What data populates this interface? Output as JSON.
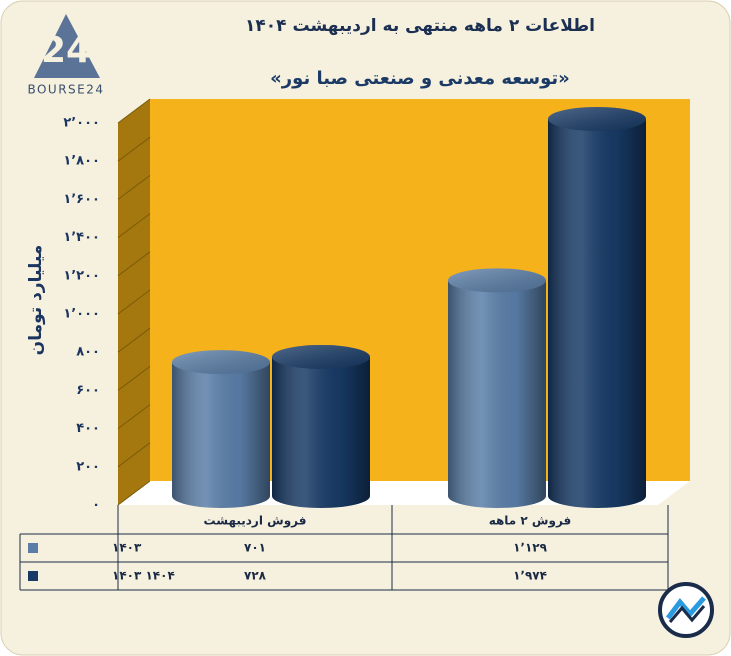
{
  "logo": "BOURSE24",
  "chart_data": {
    "type": "bar",
    "title": "اطلاعات ۲ ماهه منتهی به اردیبهشت ۱۴۰۴",
    "subtitle": "«توسعه معدنی و صنعتی صبا نور»",
    "y_label": "میلیارد تومان",
    "categories": [
      "فروش اردیبهشت",
      "فروش ۲ ماهه"
    ],
    "series": [
      {
        "name": "۱۴۰۳",
        "color": "#5a7ea8",
        "values": [
          701,
          1129
        ],
        "value_labels": [
          "۷۰۱",
          "۱٬۱۲۹"
        ]
      },
      {
        "name": "۱۴۰۴ ۱۴۰۳",
        "color": "#173a66",
        "values": [
          728,
          1974
        ],
        "value_labels": [
          "۷۲۸",
          "۱٬۹۷۴"
        ]
      }
    ],
    "ylim": [
      0,
      2000
    ],
    "yticks": [
      {
        "value": 0,
        "label": "۰"
      },
      {
        "value": 200,
        "label": "۲۰۰"
      },
      {
        "value": 400,
        "label": "۴۰۰"
      },
      {
        "value": 600,
        "label": "۶۰۰"
      },
      {
        "value": 800,
        "label": "۸۰۰"
      },
      {
        "value": 1000,
        "label": "۱٬۰۰۰"
      },
      {
        "value": 1200,
        "label": "۱٬۲۰۰"
      },
      {
        "value": 1400,
        "label": "۱٬۴۰۰"
      },
      {
        "value": 1600,
        "label": "۱٬۶۰۰"
      },
      {
        "value": 1800,
        "label": "۱٬۸۰۰"
      },
      {
        "value": 2000,
        "label": "۲٬۰۰۰"
      }
    ],
    "grid": true
  }
}
